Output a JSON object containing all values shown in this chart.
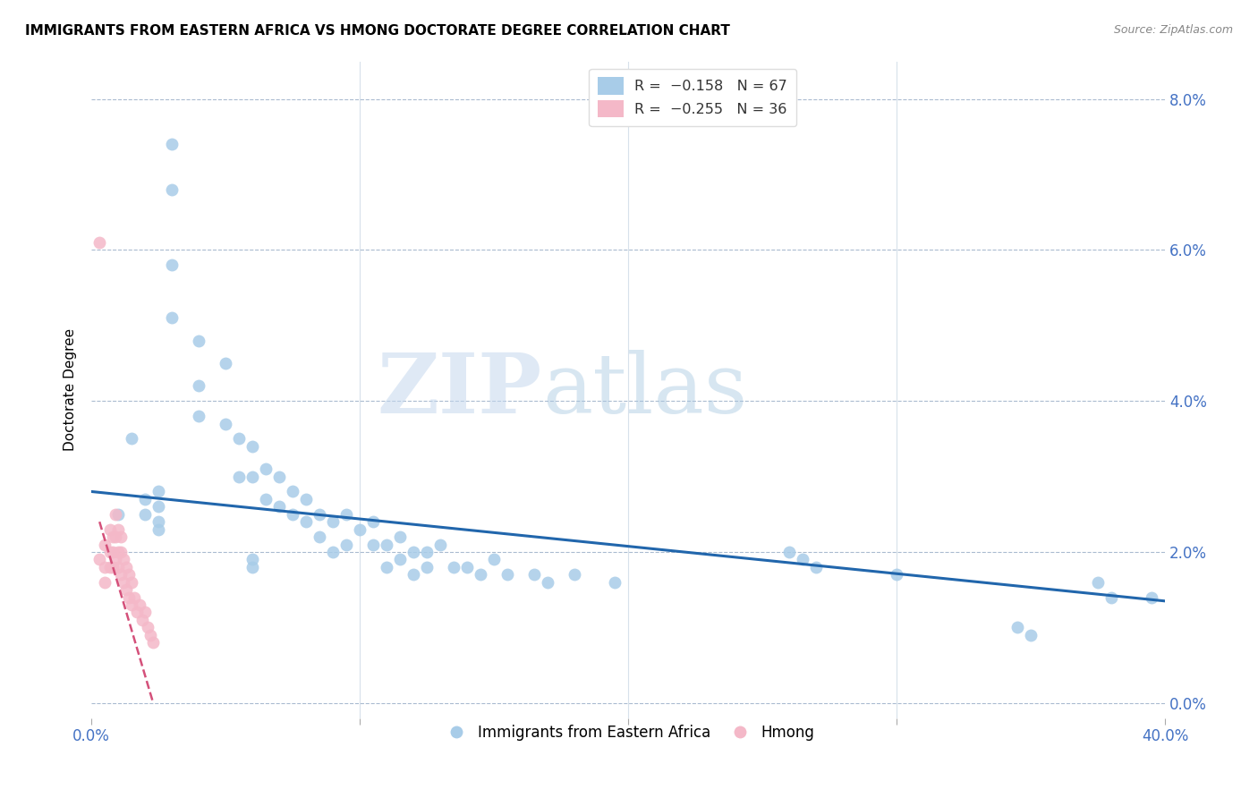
{
  "title": "IMMIGRANTS FROM EASTERN AFRICA VS HMONG DOCTORATE DEGREE CORRELATION CHART",
  "source": "Source: ZipAtlas.com",
  "ylabel": "Doctorate Degree",
  "ytick_labels": [
    "0.0%",
    "2.0%",
    "4.0%",
    "6.0%",
    "8.0%"
  ],
  "ytick_values": [
    0.0,
    0.02,
    0.04,
    0.06,
    0.08
  ],
  "xlim": [
    0.0,
    0.4
  ],
  "ylim": [
    -0.002,
    0.085
  ],
  "legend_blue_label": "R =  −0.158   N = 67",
  "legend_pink_label": "R =  −0.255   N = 36",
  "legend1_label": "Immigrants from Eastern Africa",
  "legend2_label": "Hmong",
  "blue_color": "#a8cce8",
  "pink_color": "#f4b8c8",
  "blue_line_color": "#2166ac",
  "pink_line_color": "#d4507a",
  "watermark_zip": "ZIP",
  "watermark_atlas": "atlas",
  "blue_scatter_x": [
    0.03,
    0.03,
    0.03,
    0.03,
    0.04,
    0.04,
    0.04,
    0.05,
    0.05,
    0.055,
    0.055,
    0.06,
    0.06,
    0.065,
    0.065,
    0.07,
    0.07,
    0.075,
    0.075,
    0.08,
    0.08,
    0.085,
    0.085,
    0.09,
    0.09,
    0.095,
    0.095,
    0.1,
    0.105,
    0.105,
    0.11,
    0.11,
    0.115,
    0.115,
    0.12,
    0.12,
    0.125,
    0.125,
    0.13,
    0.135,
    0.01,
    0.015,
    0.02,
    0.02,
    0.025,
    0.025,
    0.025,
    0.025,
    0.06,
    0.06,
    0.14,
    0.145,
    0.15,
    0.155,
    0.165,
    0.17,
    0.18,
    0.195,
    0.26,
    0.265,
    0.27,
    0.3,
    0.345,
    0.35,
    0.375,
    0.38,
    0.395
  ],
  "blue_scatter_y": [
    0.074,
    0.068,
    0.058,
    0.051,
    0.048,
    0.042,
    0.038,
    0.045,
    0.037,
    0.035,
    0.03,
    0.034,
    0.03,
    0.031,
    0.027,
    0.03,
    0.026,
    0.028,
    0.025,
    0.027,
    0.024,
    0.025,
    0.022,
    0.024,
    0.02,
    0.025,
    0.021,
    0.023,
    0.024,
    0.021,
    0.021,
    0.018,
    0.022,
    0.019,
    0.02,
    0.017,
    0.02,
    0.018,
    0.021,
    0.018,
    0.025,
    0.035,
    0.027,
    0.025,
    0.028,
    0.026,
    0.024,
    0.023,
    0.019,
    0.018,
    0.018,
    0.017,
    0.019,
    0.017,
    0.017,
    0.016,
    0.017,
    0.016,
    0.02,
    0.019,
    0.018,
    0.017,
    0.01,
    0.009,
    0.016,
    0.014,
    0.014
  ],
  "pink_scatter_x": [
    0.003,
    0.003,
    0.005,
    0.005,
    0.005,
    0.007,
    0.007,
    0.007,
    0.008,
    0.008,
    0.008,
    0.009,
    0.009,
    0.009,
    0.01,
    0.01,
    0.01,
    0.011,
    0.011,
    0.011,
    0.012,
    0.012,
    0.013,
    0.013,
    0.014,
    0.014,
    0.015,
    0.015,
    0.016,
    0.017,
    0.018,
    0.019,
    0.02,
    0.021,
    0.022,
    0.023
  ],
  "pink_scatter_y": [
    0.061,
    0.019,
    0.021,
    0.018,
    0.016,
    0.023,
    0.02,
    0.018,
    0.022,
    0.02,
    0.018,
    0.025,
    0.022,
    0.019,
    0.023,
    0.02,
    0.018,
    0.022,
    0.02,
    0.017,
    0.019,
    0.016,
    0.018,
    0.015,
    0.017,
    0.014,
    0.016,
    0.013,
    0.014,
    0.012,
    0.013,
    0.011,
    0.012,
    0.01,
    0.009,
    0.008
  ],
  "blue_trend_x": [
    0.0,
    0.4
  ],
  "blue_trend_y": [
    0.028,
    0.0135
  ],
  "pink_trend_x": [
    0.003,
    0.023
  ],
  "pink_trend_y": [
    0.024,
    0.0
  ]
}
